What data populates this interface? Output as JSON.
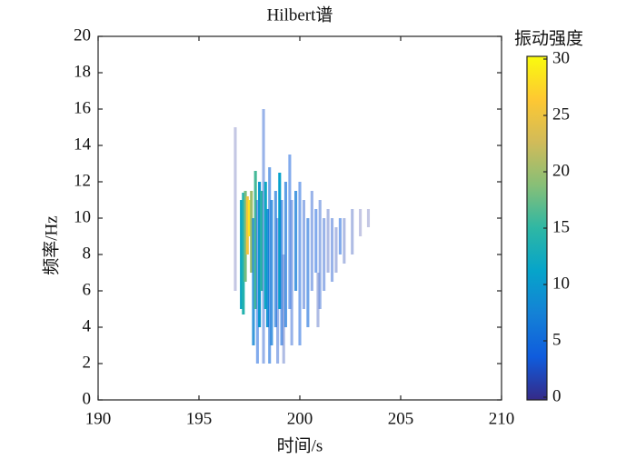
{
  "chart_data": {
    "type": "spectrum",
    "title": "Hilbert谱",
    "x_label": "时间/s",
    "y_label": "频率/Hz",
    "colorbar_label": "振动强度",
    "xlim": [
      190,
      210
    ],
    "xticks": [
      190,
      195,
      200,
      205,
      210
    ],
    "ylim": [
      0,
      20
    ],
    "yticks": [
      0,
      2,
      4,
      6,
      8,
      10,
      12,
      14,
      16,
      18,
      20
    ],
    "clim": [
      0,
      30
    ],
    "cticks": [
      0,
      5,
      10,
      15,
      20,
      25,
      30
    ],
    "colormap": [
      "#352a87",
      "#0f5cdd",
      "#1481d6",
      "#06a4ca",
      "#2eb7a4",
      "#87bf77",
      "#d1bb59",
      "#fec832",
      "#f9fb0e"
    ],
    "x": [
      196.8,
      197.1,
      197.2,
      197.3,
      197.4,
      197.5,
      197.6,
      197.7,
      197.8,
      197.9,
      198.0,
      198.1,
      198.2,
      198.3,
      198.4,
      198.5,
      198.6,
      198.8,
      198.9,
      199.0,
      199.1,
      199.2,
      199.3,
      199.5,
      199.6,
      199.8,
      200.0,
      200.2,
      200.4,
      200.6,
      200.8,
      200.9,
      201.0,
      201.2,
      201.4,
      201.6,
      201.8,
      202.0,
      202.2,
      202.6,
      203.0,
      203.4
    ],
    "y_low": [
      6,
      5,
      4.7,
      6.5,
      8,
      9,
      7,
      3,
      5,
      2,
      4,
      6,
      2,
      5,
      4,
      2,
      3,
      4,
      2,
      5,
      3,
      2,
      4,
      5,
      3,
      6,
      3,
      5,
      4,
      6,
      7,
      4,
      5,
      6,
      7,
      6.5,
      7,
      8,
      7.5,
      8,
      9,
      9.5
    ],
    "y_high": [
      15,
      11,
      11.4,
      11.5,
      11.2,
      11,
      11.5,
      10,
      12.6,
      11,
      12,
      11.5,
      16,
      12,
      10.5,
      12.8,
      11,
      11.5,
      10,
      12.5,
      11,
      8,
      12,
      13.5,
      11,
      11.5,
      12,
      11,
      10,
      11.5,
      10.5,
      7,
      11,
      10,
      10.5,
      10,
      9.5,
      10,
      10,
      10.5,
      10.5,
      10.5
    ],
    "values": [
      1,
      12,
      14,
      18,
      25,
      28,
      20,
      8,
      16,
      4,
      10,
      15,
      3,
      12,
      9,
      5,
      7,
      6,
      3,
      11,
      5,
      2,
      6,
      4,
      3,
      7,
      4,
      3,
      5,
      3,
      4,
      2,
      3,
      3,
      2,
      3,
      2,
      4,
      2,
      2,
      1,
      1
    ]
  }
}
